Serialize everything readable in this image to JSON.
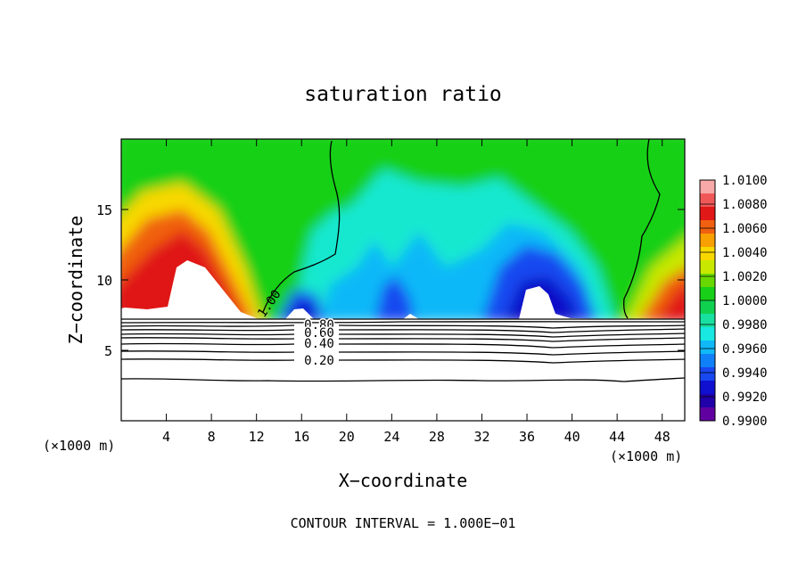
{
  "chart_data": {
    "type": "heatmap",
    "title": "saturation ratio",
    "xlabel": "X−coordinate",
    "ylabel": "Z−coordinate",
    "x_unit_label_left": "(×1000 m)",
    "x_unit_label_right": "(×1000 m)",
    "xlim": [
      0,
      50
    ],
    "ylim": [
      0,
      20
    ],
    "x_ticks": [
      4,
      8,
      12,
      16,
      20,
      24,
      28,
      32,
      36,
      40,
      44,
      48
    ],
    "y_ticks": [
      5,
      10,
      15
    ],
    "colorbar": {
      "min": 0.99,
      "max": 1.01,
      "ticks": [
        "1.0100",
        "1.0080",
        "1.0060",
        "1.0040",
        "1.0020",
        "1.0000",
        "0.9980",
        "0.9960",
        "0.9940",
        "0.9920",
        "0.9900"
      ],
      "colors": [
        "#f7a8a8",
        "#f05858",
        "#e01818",
        "#f06010",
        "#f8a000",
        "#f8d800",
        "#c8e800",
        "#68d800",
        "#18d018",
        "#10d050",
        "#18e0a0",
        "#18e8e0",
        "#10b8f8",
        "#1080f8",
        "#1848f0",
        "#1010d0",
        "#2000a8",
        "#6000a0"
      ]
    },
    "shaded_field_cross_sections": [
      {
        "z": 8.5,
        "x": [
          0,
          2,
          4,
          5.5,
          8,
          10,
          12,
          14,
          16,
          18,
          20,
          22,
          24,
          26,
          28,
          30,
          32,
          34,
          36,
          38,
          40,
          42,
          44,
          46,
          48,
          50
        ],
        "values": [
          1.006,
          1.007,
          1.008,
          1.008,
          1.007,
          1.005,
          1.002,
          0.998,
          0.994,
          0.993,
          0.996,
          0.997,
          0.995,
          0.996,
          0.995,
          0.997,
          0.996,
          0.994,
          0.992,
          0.992,
          0.995,
          0.998,
          1.001,
          1.005,
          1.007,
          1.008
        ]
      },
      {
        "z": 12,
        "x": [
          0,
          2,
          4,
          5.5,
          8,
          10,
          12,
          14,
          16,
          18,
          20,
          22,
          24,
          26,
          28,
          30,
          32,
          34,
          36,
          38,
          40,
          42,
          44,
          46,
          48,
          50
        ],
        "values": [
          1.004,
          1.006,
          1.007,
          1.0075,
          1.006,
          1.003,
          1.001,
          1.0,
          0.999,
          0.999,
          0.9975,
          0.9965,
          0.997,
          0.996,
          0.9965,
          0.997,
          0.996,
          0.995,
          0.994,
          0.9945,
          0.996,
          0.998,
          1.0,
          1.001,
          1.002,
          1.003
        ]
      },
      {
        "z": 17,
        "x": [
          0,
          4,
          8,
          12,
          16,
          20,
          24,
          28,
          32,
          36,
          40,
          44,
          48,
          50
        ],
        "values": [
          1.001,
          1.0015,
          1.001,
          1.0005,
          1.0,
          0.9995,
          0.999,
          0.9985,
          0.999,
          0.9985,
          0.999,
          0.9995,
          1.0,
          1.0005
        ]
      }
    ],
    "unsaturated_region_top_z": 7.3,
    "contour_lines": [
      {
        "label": "1.00",
        "label_x": 12.8,
        "label_z": 8.4
      },
      {
        "label": "0.80",
        "label_x": 17.6,
        "label_z": 7.0
      },
      {
        "label": "0.60",
        "label_x": 17.6,
        "label_z": 6.3
      },
      {
        "label": "0.40",
        "label_x": 17.6,
        "label_z": 5.5
      },
      {
        "label": "0.20",
        "label_x": 17.6,
        "label_z": 4.3
      }
    ],
    "footer": "CONTOUR INTERVAL = 1.000E−01"
  }
}
